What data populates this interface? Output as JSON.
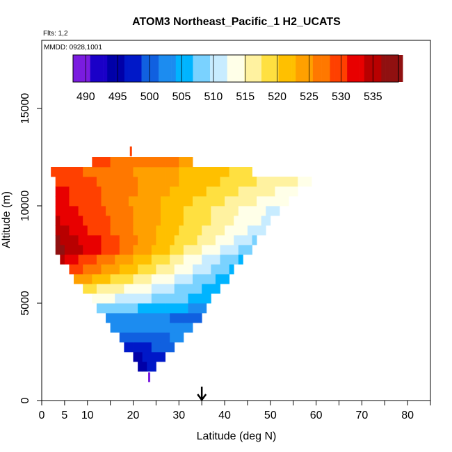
{
  "chart_data": {
    "type": "heatmap",
    "title": "ATOM3 Northeast_Pacific_1 H2_UCATS",
    "flights_label": "Flts: 1,2",
    "mmdd_label": "MMDD: 0928,1001",
    "xlabel": "Latitude (deg N)",
    "ylabel": "Altitude (m)",
    "xlim": [
      0,
      85
    ],
    "ylim": [
      0,
      18500
    ],
    "x_ticks": [
      0,
      5,
      10,
      20,
      30,
      40,
      50,
      60,
      70,
      80
    ],
    "x_minor_ticks": [
      15,
      25,
      35,
      45,
      55,
      65,
      75,
      85
    ],
    "y_ticks": [
      0,
      5000,
      10000,
      15000
    ],
    "colorbar": {
      "min": 488,
      "max": 539,
      "labels": [
        490,
        495,
        500,
        505,
        510,
        515,
        520,
        525,
        530,
        535
      ],
      "colors": [
        "#7a1ce0",
        "#1a00c8",
        "#0000a8",
        "#0018c8",
        "#1060e0",
        "#1c8cf0",
        "#00b4ff",
        "#7ad2ff",
        "#c8ecff",
        "#ffffe8",
        "#fff2a0",
        "#ffe040",
        "#ffc000",
        "#ffa000",
        "#ff7800",
        "#ff4000",
        "#e80000",
        "#b80000",
        "#901010"
      ]
    },
    "cell_height_m": 500,
    "rows": [
      {
        "alt": 1500,
        "lat_min": 21,
        "lat_max": 25,
        "v_south": 495,
        "v_north": 497
      },
      {
        "alt": 2000,
        "lat_min": 20,
        "lat_max": 27,
        "v_south": 495,
        "v_north": 498
      },
      {
        "alt": 2500,
        "lat_min": 18,
        "lat_max": 29,
        "v_south": 497,
        "v_north": 500
      },
      {
        "alt": 3000,
        "lat_min": 17,
        "lat_max": 31,
        "v_south": 499,
        "v_north": 502
      },
      {
        "alt": 3500,
        "lat_min": 15,
        "lat_max": 33,
        "v_south": 502,
        "v_north": 503
      },
      {
        "alt": 4000,
        "lat_min": 14,
        "lat_max": 35,
        "v_south": 504,
        "v_north": 500
      },
      {
        "alt": 4500,
        "lat_min": 12,
        "lat_max": 36,
        "v_south": 509,
        "v_north": 503
      },
      {
        "alt": 5000,
        "lat_min": 11,
        "lat_max": 37,
        "v_south": 514,
        "v_north": 505
      },
      {
        "alt": 5500,
        "lat_min": 9,
        "lat_max": 39,
        "v_south": 519,
        "v_north": 505
      },
      {
        "alt": 6000,
        "lat_min": 7,
        "lat_max": 41,
        "v_south": 525,
        "v_north": 505
      },
      {
        "alt": 6500,
        "lat_min": 6,
        "lat_max": 42,
        "v_south": 530,
        "v_north": 506
      },
      {
        "alt": 7000,
        "lat_min": 4,
        "lat_max": 44,
        "v_south": 534,
        "v_north": 506
      },
      {
        "alt": 7500,
        "lat_min": 3,
        "lat_max": 46,
        "v_south": 538,
        "v_north": 507
      },
      {
        "alt": 8000,
        "lat_min": 3,
        "lat_max": 47,
        "v_south": 537,
        "v_north": 509
      },
      {
        "alt": 8500,
        "lat_min": 3,
        "lat_max": 49,
        "v_south": 535,
        "v_north": 510
      },
      {
        "alt": 9000,
        "lat_min": 3,
        "lat_max": 50,
        "v_south": 534,
        "v_north": 511
      },
      {
        "alt": 9500,
        "lat_min": 3,
        "lat_max": 52,
        "v_south": 533,
        "v_north": 511
      },
      {
        "alt": 10000,
        "lat_min": 3,
        "lat_max": 54,
        "v_south": 532,
        "v_north": 512
      },
      {
        "alt": 10500,
        "lat_min": 3,
        "lat_max": 56,
        "v_south": 532,
        "v_north": 513
      },
      {
        "alt": 11000,
        "lat_min": 3,
        "lat_max": 59,
        "v_south": 531,
        "v_north": 514
      },
      {
        "alt": 11500,
        "lat_min": 2,
        "lat_max": 46,
        "v_south": 530,
        "v_north": 519
      },
      {
        "alt": 12000,
        "lat_min": 11,
        "lat_max": 33,
        "v_south": 529,
        "v_north": 525
      }
    ],
    "arrow_lat": 35,
    "markers": [
      {
        "lat": 19.5,
        "alt": 12800,
        "color": "#ff4000"
      },
      {
        "lat": 23.5,
        "alt": 1200,
        "color": "#7a1ce0"
      }
    ]
  }
}
